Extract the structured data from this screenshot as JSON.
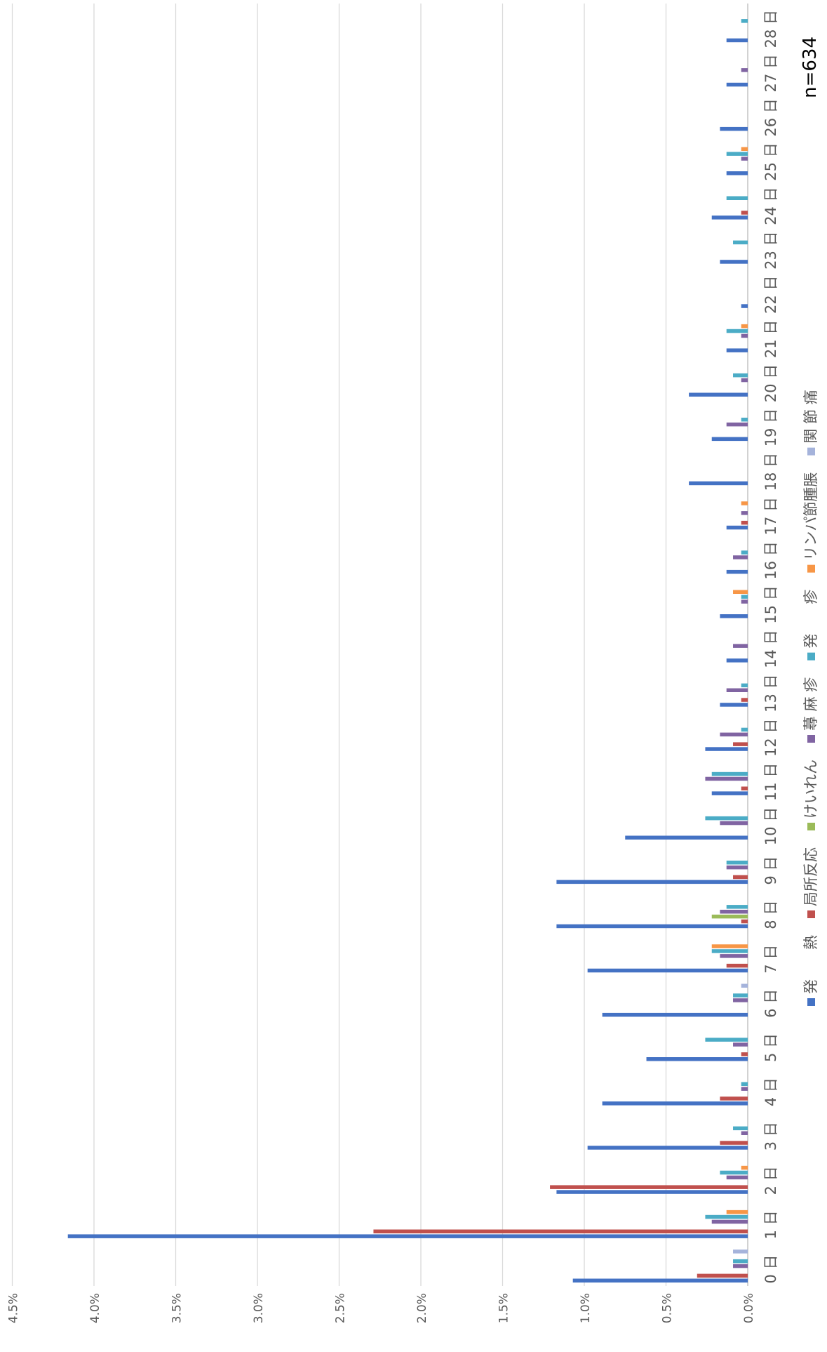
{
  "chart_data": {
    "type": "bar",
    "orientation": "horizontal, rotated 90° clockwise",
    "annotation": "n=634",
    "xlim": [
      0,
      4.5
    ],
    "x_ticks": [
      "0.0%",
      "0.5%",
      "1.0%",
      "1.5%",
      "2.0%",
      "2.5%",
      "3.0%",
      "3.5%",
      "4.0%",
      "4.5%"
    ],
    "grid": true,
    "legend_position": "right",
    "categories": [
      "0 日",
      "1 日",
      "2 日",
      "3 日",
      "4 日",
      "5 日",
      "6 日",
      "7 日",
      "8 日",
      "9 日",
      "10 日",
      "11 日",
      "12 日",
      "13 日",
      "14 日",
      "15 日",
      "16 日",
      "17 日",
      "18 日",
      "19 日",
      "20 日",
      "21 日",
      "22 日",
      "23 日",
      "24 日",
      "25 日",
      "26 日",
      "27 日",
      "28 日"
    ],
    "series": [
      {
        "name": "発　　熱",
        "color": "#4472C4",
        "values": [
          1.07,
          4.16,
          1.17,
          0.98,
          0.89,
          0.62,
          0.89,
          0.98,
          1.17,
          1.17,
          0.75,
          0.22,
          0.26,
          0.17,
          0.13,
          0.17,
          0.13,
          0.13,
          0.36,
          0.22,
          0.36,
          0.13,
          0.04,
          0.17,
          0.22,
          0.13,
          0.17,
          0.13,
          0.13
        ]
      },
      {
        "name": "局所反応",
        "color": "#C0504D",
        "values": [
          0.31,
          2.29,
          1.21,
          0.17,
          0.17,
          0.04,
          0,
          0.13,
          0.04,
          0.09,
          0,
          0.04,
          0.09,
          0.04,
          0,
          0,
          0,
          0.04,
          0,
          0,
          0,
          0,
          0,
          0,
          0.04,
          0,
          0,
          0,
          0
        ]
      },
      {
        "name": "けいれん",
        "color": "#9BBB59",
        "values": [
          0,
          0,
          0,
          0,
          0,
          0,
          0,
          0,
          0.22,
          0,
          0,
          0,
          0,
          0,
          0,
          0,
          0,
          0,
          0,
          0,
          0,
          0,
          0,
          0,
          0,
          0,
          0,
          0,
          0
        ]
      },
      {
        "name": "蕁 麻 疹",
        "color": "#8064A2",
        "values": [
          0.09,
          0.22,
          0.13,
          0.04,
          0.04,
          0.09,
          0.09,
          0.17,
          0.17,
          0.13,
          0.17,
          0.26,
          0.17,
          0.13,
          0.09,
          0.04,
          0.09,
          0.04,
          0,
          0.13,
          0.04,
          0.04,
          0,
          0,
          0,
          0.04,
          0,
          0.04,
          0
        ]
      },
      {
        "name": "発　　疹",
        "color": "#4BACC6",
        "values": [
          0.09,
          0.26,
          0.17,
          0.09,
          0.04,
          0.26,
          0.09,
          0.22,
          0.13,
          0.13,
          0.26,
          0.22,
          0.04,
          0.04,
          0,
          0.04,
          0.04,
          0,
          0,
          0.04,
          0.09,
          0.13,
          0,
          0.09,
          0.13,
          0.13,
          0,
          0,
          0.04
        ]
      },
      {
        "name": "リンパ節腫脹",
        "color": "#F79646",
        "values": [
          0,
          0.13,
          0.04,
          0,
          0,
          0,
          0,
          0.22,
          0,
          0,
          0,
          0,
          0,
          0,
          0,
          0.09,
          0,
          0.04,
          0,
          0,
          0,
          0.04,
          0,
          0,
          0,
          0.04,
          0,
          0,
          0
        ]
      },
      {
        "name": "関 節 痛",
        "color": "#A5B3DB",
        "values": [
          0.09,
          0,
          0,
          0,
          0,
          0,
          0.04,
          0,
          0,
          0,
          0,
          0,
          0,
          0,
          0,
          0,
          0,
          0,
          0,
          0,
          0,
          0,
          0,
          0,
          0,
          0,
          0,
          0,
          0
        ]
      }
    ]
  }
}
